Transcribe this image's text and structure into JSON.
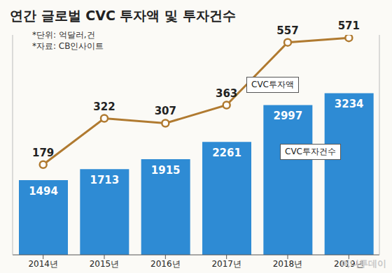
{
  "chart_data": {
    "type": "bar",
    "title": "연간 글로벌 CVC 투자액 및 투자건수",
    "notes": [
      "*단위: 억달러,건",
      "*자료: CB인사이트"
    ],
    "watermark": "머니투데이",
    "categories": [
      "2014년",
      "2015년",
      "2016년",
      "2017년",
      "2018년",
      "2019년"
    ],
    "series": [
      {
        "name": "CVC투자건수",
        "type": "bar",
        "color": "#2e8bd4",
        "values": [
          1494,
          1713,
          1915,
          2261,
          2997,
          3234
        ]
      },
      {
        "name": "CVC투자액",
        "type": "line",
        "axis": "y2",
        "color": "#b07a30",
        "marker": "circle",
        "values": [
          179,
          322,
          307,
          363,
          557,
          571
        ]
      }
    ],
    "ylim": [
      0,
      4400
    ],
    "y2lim": [
      -100,
      580
    ],
    "tick_labels": "x",
    "data_labels": true
  }
}
